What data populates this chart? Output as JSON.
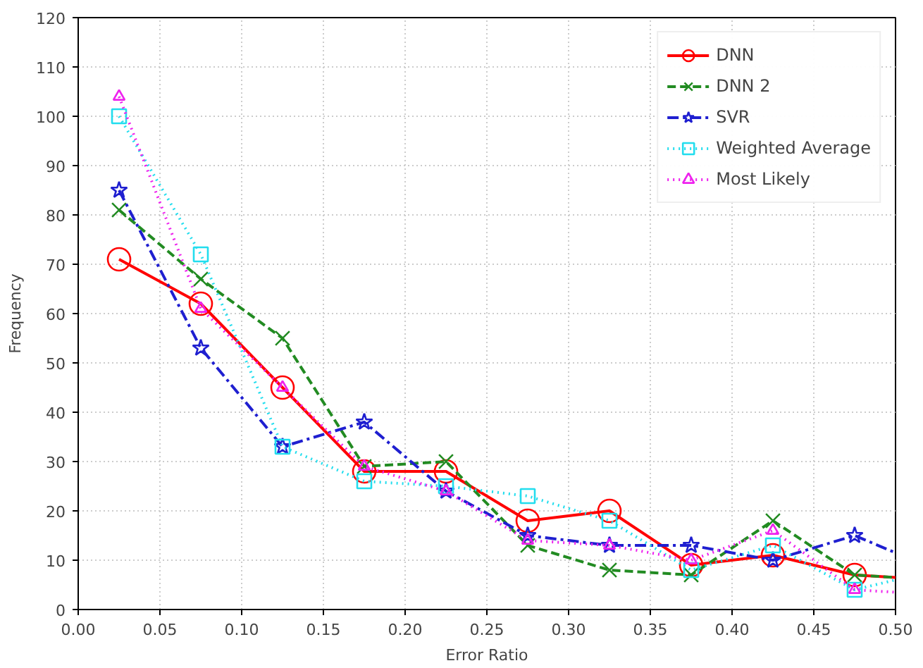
{
  "chart_data": {
    "type": "line",
    "xlabel": "Error Ratio",
    "ylabel": "Frequency",
    "x": [
      0.025,
      0.075,
      0.125,
      0.175,
      0.225,
      0.275,
      0.325,
      0.375,
      0.425,
      0.475,
      0.5
    ],
    "series": [
      {
        "name": "DNN",
        "color": "#ff0000",
        "marker": "circle",
        "line_style": "solid",
        "values": [
          71,
          62,
          45,
          28,
          28,
          18,
          20,
          9,
          11,
          7,
          6.5
        ]
      },
      {
        "name": "DNN 2",
        "color": "#228b22",
        "marker": "cross",
        "line_style": "dashed",
        "values": [
          81,
          67,
          55,
          29,
          30,
          13,
          8,
          7,
          18,
          7,
          6.5
        ]
      },
      {
        "name": "SVR",
        "color": "#1f1fd0",
        "marker": "star",
        "line_style": "dashdot",
        "values": [
          85,
          53,
          33,
          38,
          24,
          15,
          13,
          13,
          10,
          15,
          11.5
        ]
      },
      {
        "name": "Weighted Average",
        "color": "#22ddee",
        "marker": "square",
        "line_style": "dotted",
        "values": [
          100,
          72,
          33,
          26,
          25,
          23,
          18,
          8,
          13,
          4,
          6
        ]
      },
      {
        "name": "Most Likely",
        "color": "#ee22ee",
        "marker": "triangle",
        "line_style": "dotted",
        "values": [
          104,
          61,
          45,
          29,
          24,
          14,
          13,
          10,
          16,
          4,
          3.5
        ]
      }
    ],
    "xlim": [
      0,
      0.5
    ],
    "ylim": [
      0,
      120
    ],
    "xticks": [
      {
        "value": 0,
        "label": "0.00"
      },
      {
        "value": 0.05,
        "label": "0.05"
      },
      {
        "value": 0.1,
        "label": "0.10"
      },
      {
        "value": 0.15,
        "label": "0.15"
      },
      {
        "value": 0.2,
        "label": "0.20"
      },
      {
        "value": 0.25,
        "label": "0.25"
      },
      {
        "value": 0.3,
        "label": "0.30"
      },
      {
        "value": 0.35,
        "label": "0.35"
      },
      {
        "value": 0.4,
        "label": "0.40"
      },
      {
        "value": 0.45,
        "label": "0.45"
      },
      {
        "value": 0.5,
        "label": "0.50"
      }
    ],
    "yticks": [
      0,
      10,
      20,
      30,
      40,
      50,
      60,
      70,
      80,
      90,
      100,
      110,
      120
    ],
    "grid": true,
    "legend": "top right"
  }
}
